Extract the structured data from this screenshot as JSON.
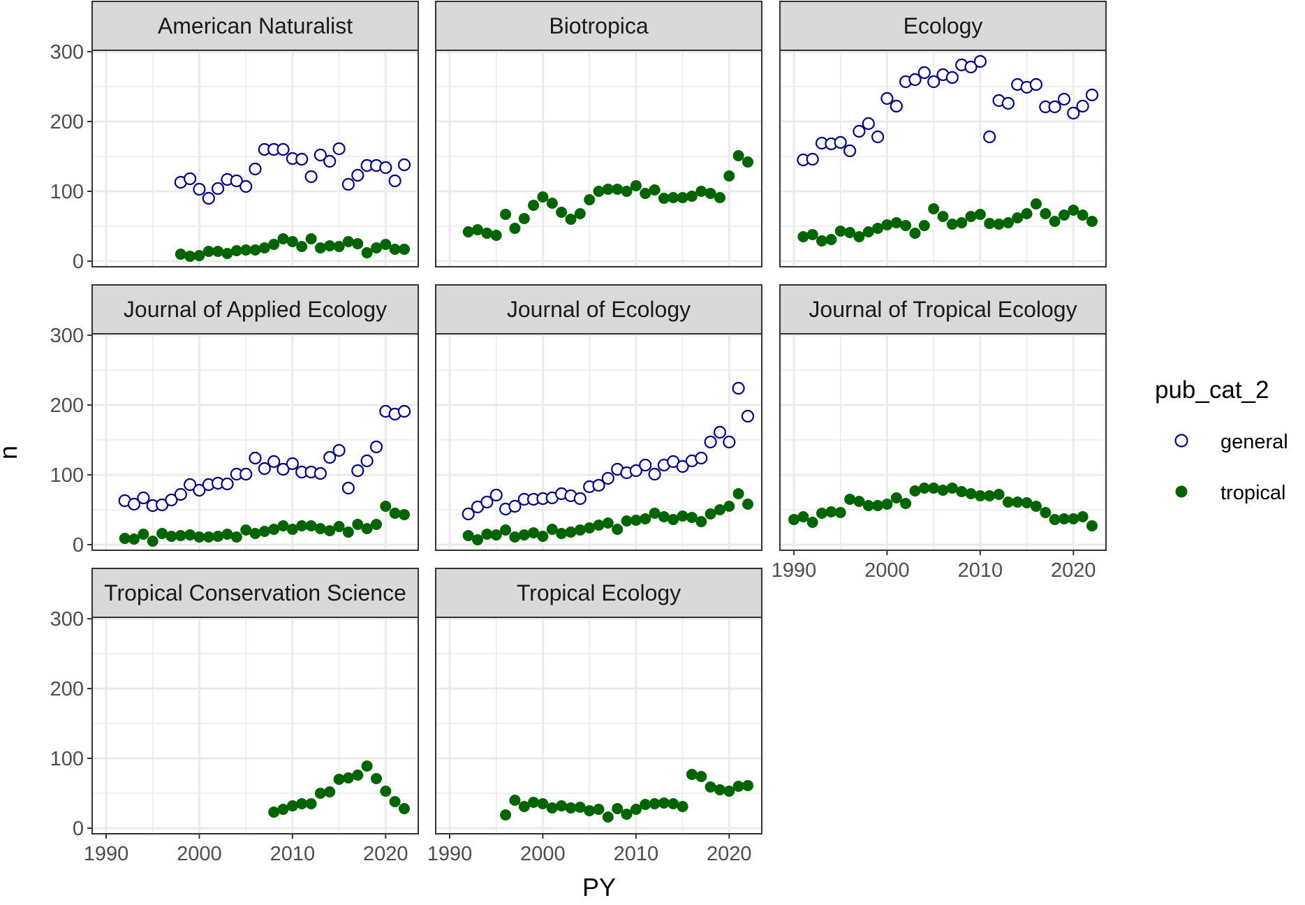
{
  "colors": {
    "general": "#000080",
    "tropical": "#006400",
    "strip_fill": "#D9D9D9",
    "grid": "#EBEBEB",
    "panel_border": "#333333",
    "text": "#4D4D4D"
  },
  "chart_data": {
    "type": "scatter",
    "title": "",
    "xlabel": "PY",
    "ylabel": "n",
    "xlim": [
      1988.5,
      2023.5
    ],
    "ylim": [
      -8,
      302
    ],
    "x_ticks": [
      1990,
      2000,
      2010,
      2020
    ],
    "x_tick_labels": [
      "1990",
      "2000",
      "2010",
      "2020"
    ],
    "y_ticks": [
      0,
      100,
      200,
      300
    ],
    "y_tick_labels": [
      "0",
      "100",
      "200",
      "300"
    ],
    "grid": true,
    "legend": {
      "title": "pub_cat_2",
      "position": "right",
      "entries": [
        "general",
        "tropical"
      ]
    },
    "panels": [
      {
        "title": "American Naturalist",
        "series": [
          {
            "name": "general",
            "marker": "open-circle",
            "x": [
              1998,
              1999,
              2000,
              2001,
              2002,
              2003,
              2004,
              2005,
              2006,
              2007,
              2008,
              2009,
              2010,
              2011,
              2012,
              2013,
              2014,
              2015,
              2016,
              2017,
              2018,
              2019,
              2020,
              2021,
              2022
            ],
            "y": [
              113,
              118,
              103,
              90,
              104,
              117,
              115,
              107,
              132,
              160,
              160,
              160,
              147,
              146,
              121,
              152,
              143,
              161,
              110,
              123,
              137,
              137,
              134,
              115,
              138
            ]
          },
          {
            "name": "tropical",
            "marker": "filled-circle",
            "x": [
              1998,
              1999,
              2000,
              2001,
              2002,
              2003,
              2004,
              2005,
              2006,
              2007,
              2008,
              2009,
              2010,
              2011,
              2012,
              2013,
              2014,
              2015,
              2016,
              2017,
              2018,
              2019,
              2020,
              2021,
              2022
            ],
            "y": [
              10,
              7,
              8,
              14,
              14,
              11,
              15,
              16,
              16,
              19,
              24,
              32,
              28,
              21,
              32,
              19,
              22,
              21,
              28,
              25,
              12,
              19,
              24,
              17,
              17
            ]
          }
        ]
      },
      {
        "title": "Biotropica",
        "series": [
          {
            "name": "tropical",
            "marker": "filled-circle",
            "x": [
              1992,
              1993,
              1994,
              1995,
              1996,
              1997,
              1998,
              1999,
              2000,
              2001,
              2002,
              2003,
              2004,
              2005,
              2006,
              2007,
              2008,
              2009,
              2010,
              2011,
              2012,
              2013,
              2014,
              2015,
              2016,
              2017,
              2018,
              2019,
              2020,
              2021,
              2022
            ],
            "y": [
              42,
              45,
              40,
              37,
              67,
              47,
              61,
              80,
              92,
              83,
              70,
              60,
              68,
              88,
              100,
              103,
              103,
              100,
              108,
              97,
              102,
              90,
              91,
              91,
              93,
              100,
              97,
              91,
              122,
              151,
              142
            ]
          }
        ]
      },
      {
        "title": "Ecology",
        "series": [
          {
            "name": "general",
            "marker": "open-circle",
            "x": [
              1991,
              1992,
              1993,
              1994,
              1995,
              1996,
              1997,
              1998,
              1999,
              2000,
              2001,
              2002,
              2003,
              2004,
              2005,
              2006,
              2007,
              2008,
              2009,
              2010,
              2011,
              2012,
              2013,
              2014,
              2015,
              2016,
              2017,
              2018,
              2019,
              2020,
              2021,
              2022
            ],
            "y": [
              145,
              146,
              169,
              168,
              170,
              158,
              186,
              197,
              178,
              233,
              222,
              257,
              260,
              270,
              257,
              267,
              263,
              281,
              278,
              286,
              178,
              230,
              226,
              253,
              249,
              253,
              221,
              221,
              232,
              212,
              222,
              238
            ]
          },
          {
            "name": "tropical",
            "marker": "filled-circle",
            "x": [
              1991,
              1992,
              1993,
              1994,
              1995,
              1996,
              1997,
              1998,
              1999,
              2000,
              2001,
              2002,
              2003,
              2004,
              2005,
              2006,
              2007,
              2008,
              2009,
              2010,
              2011,
              2012,
              2013,
              2014,
              2015,
              2016,
              2017,
              2018,
              2019,
              2020,
              2021,
              2022
            ],
            "y": [
              35,
              38,
              29,
              31,
              43,
              41,
              35,
              42,
              47,
              52,
              55,
              51,
              40,
              51,
              75,
              64,
              53,
              55,
              64,
              67,
              54,
              53,
              55,
              62,
              68,
              82,
              68,
              57,
              66,
              73,
              66,
              57
            ]
          }
        ]
      },
      {
        "title": "Journal of Applied Ecology",
        "series": [
          {
            "name": "general",
            "marker": "open-circle",
            "x": [
              1992,
              1993,
              1994,
              1995,
              1996,
              1997,
              1998,
              1999,
              2000,
              2001,
              2002,
              2003,
              2004,
              2005,
              2006,
              2007,
              2008,
              2009,
              2010,
              2011,
              2012,
              2013,
              2014,
              2015,
              2016,
              2017,
              2018,
              2019,
              2020,
              2021,
              2022
            ],
            "y": [
              63,
              58,
              67,
              56,
              57,
              64,
              72,
              86,
              78,
              86,
              88,
              87,
              101,
              101,
              124,
              109,
              119,
              108,
              116,
              104,
              104,
              102,
              125,
              135,
              81,
              106,
              120,
              140,
              191,
              187,
              191
            ]
          },
          {
            "name": "tropical",
            "marker": "filled-circle",
            "x": [
              1992,
              1993,
              1994,
              1995,
              1996,
              1997,
              1998,
              1999,
              2000,
              2001,
              2002,
              2003,
              2004,
              2005,
              2006,
              2007,
              2008,
              2009,
              2010,
              2011,
              2012,
              2013,
              2014,
              2015,
              2016,
              2017,
              2018,
              2019,
              2020,
              2021,
              2022
            ],
            "y": [
              9,
              8,
              15,
              5,
              16,
              12,
              13,
              14,
              11,
              11,
              12,
              15,
              11,
              21,
              16,
              19,
              22,
              27,
              22,
              27,
              27,
              23,
              20,
              26,
              18,
              29,
              23,
              29,
              55,
              45,
              43
            ]
          }
        ]
      },
      {
        "title": "Journal of Ecology",
        "series": [
          {
            "name": "general",
            "marker": "open-circle",
            "x": [
              1992,
              1993,
              1994,
              1995,
              1996,
              1997,
              1998,
              1999,
              2000,
              2001,
              2002,
              2003,
              2004,
              2005,
              2006,
              2007,
              2008,
              2009,
              2010,
              2011,
              2012,
              2013,
              2014,
              2015,
              2016,
              2017,
              2018,
              2019,
              2020,
              2021,
              2022
            ],
            "y": [
              44,
              54,
              61,
              71,
              51,
              55,
              65,
              65,
              66,
              67,
              73,
              70,
              66,
              83,
              85,
              95,
              108,
              103,
              106,
              114,
              101,
              114,
              119,
              112,
              120,
              124,
              147,
              161,
              147,
              224,
              184
            ]
          },
          {
            "name": "tropical",
            "marker": "filled-circle",
            "x": [
              1992,
              1993,
              1994,
              1995,
              1996,
              1997,
              1998,
              1999,
              2000,
              2001,
              2002,
              2003,
              2004,
              2005,
              2006,
              2007,
              2008,
              2009,
              2010,
              2011,
              2012,
              2013,
              2014,
              2015,
              2016,
              2017,
              2018,
              2019,
              2020,
              2021,
              2022
            ],
            "y": [
              13,
              7,
              15,
              14,
              21,
              11,
              14,
              17,
              12,
              22,
              16,
              18,
              21,
              24,
              28,
              31,
              22,
              34,
              35,
              37,
              45,
              40,
              36,
              41,
              39,
              33,
              44,
              50,
              55,
              73,
              58
            ]
          }
        ]
      },
      {
        "title": "Journal of Tropical Ecology",
        "series": [
          {
            "name": "tropical",
            "marker": "filled-circle",
            "x": [
              1990,
              1991,
              1992,
              1993,
              1994,
              1995,
              1996,
              1997,
              1998,
              1999,
              2000,
              2001,
              2002,
              2003,
              2004,
              2005,
              2006,
              2007,
              2008,
              2009,
              2010,
              2011,
              2012,
              2013,
              2014,
              2015,
              2016,
              2017,
              2018,
              2019,
              2020,
              2021,
              2022
            ],
            "y": [
              36,
              40,
              32,
              45,
              47,
              46,
              65,
              62,
              56,
              56,
              58,
              67,
              59,
              77,
              81,
              81,
              78,
              81,
              76,
              73,
              70,
              70,
              72,
              61,
              61,
              60,
              55,
              46,
              36,
              37,
              37,
              40,
              27
            ]
          }
        ]
      },
      {
        "title": "Tropical Conservation Science",
        "series": [
          {
            "name": "tropical",
            "marker": "filled-circle",
            "x": [
              2008,
              2009,
              2010,
              2011,
              2012,
              2013,
              2014,
              2015,
              2016,
              2017,
              2018,
              2019,
              2020,
              2021,
              2022
            ],
            "y": [
              23,
              27,
              32,
              35,
              35,
              50,
              52,
              70,
              72,
              76,
              89,
              71,
              53,
              38,
              28
            ]
          }
        ]
      },
      {
        "title": "Tropical Ecology",
        "series": [
          {
            "name": "tropical",
            "marker": "filled-circle",
            "x": [
              1996,
              1997,
              1998,
              1999,
              2000,
              2001,
              2002,
              2003,
              2004,
              2005,
              2006,
              2007,
              2008,
              2009,
              2010,
              2011,
              2012,
              2013,
              2014,
              2015,
              2016,
              2017,
              2018,
              2019,
              2020,
              2021,
              2022
            ],
            "y": [
              19,
              40,
              31,
              37,
              35,
              29,
              32,
              29,
              30,
              25,
              27,
              16,
              28,
              20,
              27,
              34,
              35,
              36,
              35,
              31,
              77,
              74,
              59,
              55,
              53,
              60,
              61
            ]
          }
        ]
      }
    ]
  }
}
